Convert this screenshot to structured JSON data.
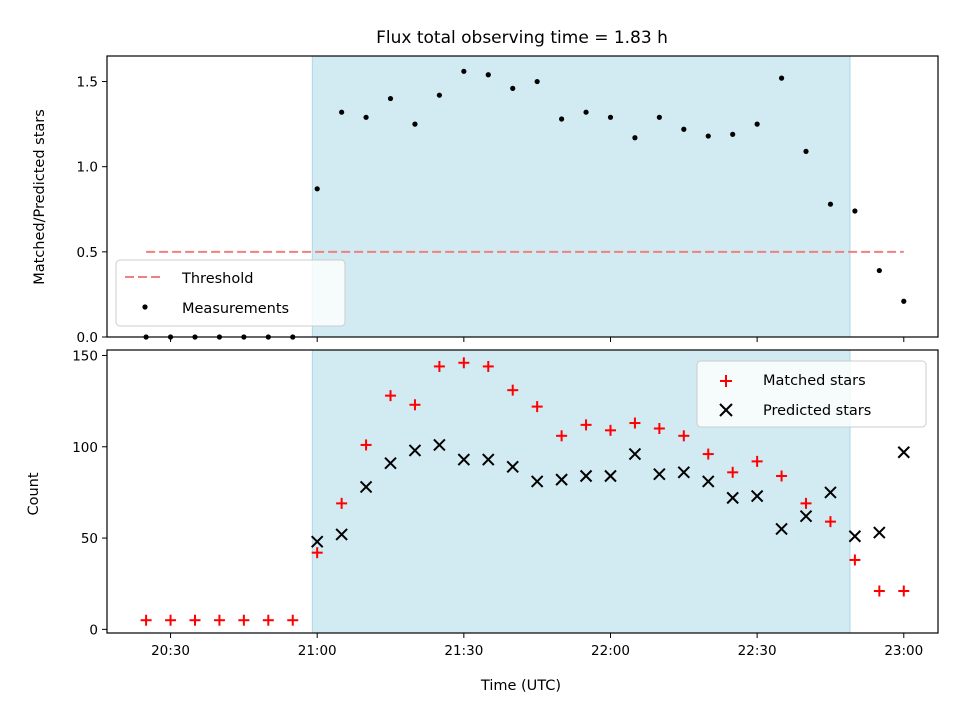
{
  "chart_data": [
    {
      "type": "scatter",
      "title": "Flux total observing time = 1.83 h",
      "xlabel": "",
      "ylabel": "Matched/Predicted stars",
      "xlim": [
        "20:17",
        "23:07"
      ],
      "ylim": [
        0,
        1.65
      ],
      "yticks": [
        "0.0",
        "0.5",
        "1.0",
        "1.5"
      ],
      "shaded_interval": [
        "20:59",
        "22:49"
      ],
      "shade_color": "#add8e6",
      "threshold": {
        "name": "Threshold",
        "y": 0.5,
        "x_start": "20:25",
        "x_end": "23:00",
        "color": "#f08080"
      },
      "series": [
        {
          "name": "Measurements",
          "marker": "dot",
          "color": "#000000",
          "x": [
            "20:25",
            "20:30",
            "20:35",
            "20:40",
            "20:45",
            "20:50",
            "20:55",
            "21:00",
            "21:05",
            "21:10",
            "21:15",
            "21:20",
            "21:25",
            "21:30",
            "21:35",
            "21:40",
            "21:45",
            "21:50",
            "21:55",
            "22:00",
            "22:05",
            "22:10",
            "22:15",
            "22:20",
            "22:25",
            "22:30",
            "22:35",
            "22:40",
            "22:45",
            "22:50",
            "22:55",
            "23:00"
          ],
          "y": [
            0,
            0,
            0,
            0,
            0,
            0,
            0,
            0.87,
            1.32,
            1.29,
            1.4,
            1.25,
            1.42,
            1.56,
            1.54,
            1.46,
            1.5,
            1.28,
            1.32,
            1.29,
            1.17,
            1.29,
            1.22,
            1.18,
            1.19,
            1.25,
            1.52,
            1.09,
            0.78,
            0.74,
            0.39,
            0.21
          ]
        }
      ],
      "legend": {
        "location": "lower-left",
        "entries": [
          "Threshold",
          "Measurements"
        ]
      }
    },
    {
      "type": "scatter",
      "title": "",
      "xlabel": "Time (UTC)",
      "ylabel": "Count",
      "xlim": [
        "20:17",
        "23:07"
      ],
      "xticks": [
        "20:30",
        "21:00",
        "21:30",
        "22:00",
        "22:30",
        "23:00"
      ],
      "ylim": [
        -2,
        153
      ],
      "yticks": [
        "0",
        "50",
        "100",
        "150"
      ],
      "shaded_interval": [
        "20:59",
        "22:49"
      ],
      "shade_color": "#add8e6",
      "series": [
        {
          "name": "Matched stars",
          "marker": "plus",
          "color": "#ff0000",
          "x": [
            "20:25",
            "20:30",
            "20:35",
            "20:40",
            "20:45",
            "20:50",
            "20:55",
            "21:00",
            "21:05",
            "21:10",
            "21:15",
            "21:20",
            "21:25",
            "21:30",
            "21:35",
            "21:40",
            "21:45",
            "21:50",
            "21:55",
            "22:00",
            "22:05",
            "22:10",
            "22:15",
            "22:20",
            "22:25",
            "22:30",
            "22:35",
            "22:40",
            "22:45",
            "22:50",
            "22:55",
            "23:00"
          ],
          "y": [
            5,
            5,
            5,
            5,
            5,
            5,
            5,
            42,
            69,
            101,
            128,
            123,
            144,
            146,
            144,
            131,
            122,
            106,
            112,
            109,
            113,
            110,
            106,
            96,
            86,
            92,
            84,
            69,
            59,
            38,
            21,
            21
          ]
        },
        {
          "name": "Predicted stars",
          "marker": "x",
          "color": "#000000",
          "x": [
            "21:00",
            "21:05",
            "21:10",
            "21:15",
            "21:20",
            "21:25",
            "21:30",
            "21:35",
            "21:40",
            "21:45",
            "21:50",
            "21:55",
            "22:00",
            "22:05",
            "22:10",
            "22:15",
            "22:20",
            "22:25",
            "22:30",
            "22:35",
            "22:40",
            "22:45",
            "22:50",
            "22:55",
            "23:00"
          ],
          "y": [
            48,
            52,
            78,
            91,
            98,
            101,
            93,
            93,
            89,
            81,
            82,
            84,
            84,
            96,
            85,
            86,
            81,
            72,
            73,
            55,
            62,
            75,
            51,
            53,
            97
          ]
        }
      ],
      "legend": {
        "location": "upper-right",
        "entries": [
          "Matched stars",
          "Predicted stars"
        ]
      }
    }
  ]
}
